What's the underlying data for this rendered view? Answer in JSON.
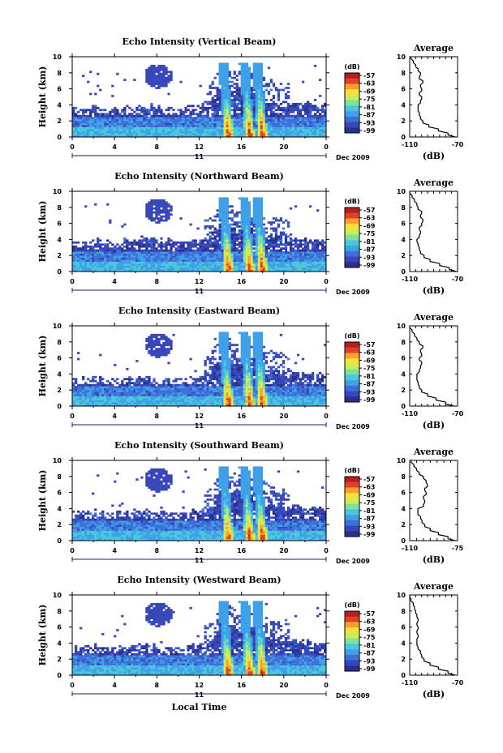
{
  "chart_data": [
    {
      "type": "heatmap",
      "title": "Echo Intensity (Vertical Beam)",
      "xlabel": "",
      "ylabel": "Height (km)",
      "xticks": [
        "0",
        "4",
        "8",
        "12",
        "16",
        "20",
        "0"
      ],
      "yticks": [
        "0",
        "2",
        "4",
        "6",
        "8",
        "10"
      ],
      "xlim": [
        0,
        24
      ],
      "ylim": [
        0,
        10
      ],
      "day_label": "11",
      "date_label": "Dec 2009",
      "colorbar": {
        "unit": "(dB)",
        "ticks": [
          "-57",
          "-63",
          "-69",
          "-75",
          "-81",
          "-87",
          "-93",
          "-99"
        ]
      },
      "layers": {
        "cloud_top_km": [
          3.5,
          3.6,
          3.8,
          3.7,
          3.6,
          3.8,
          3.9,
          4.0,
          3.8,
          3.7,
          3.6,
          3.8,
          4.0,
          4.2,
          6.5,
          6.2,
          6.0,
          6.2,
          5.2,
          4.8,
          4.5,
          4.4,
          4.3,
          4.2,
          4.0
        ]
      },
      "convection_hours": [
        14.8,
        16.8,
        18.0
      ],
      "average_profile": {
        "title": "Average",
        "xlabel": "(dB)",
        "xticks": [
          "-110",
          "-70"
        ],
        "xlim": [
          -110,
          -70
        ],
        "yticks": [
          "0",
          "2",
          "4",
          "6",
          "8",
          "10"
        ],
        "ylim": [
          0,
          10
        ],
        "height_km": [
          0,
          0.5,
          1,
          1.5,
          2,
          2.5,
          3,
          3.5,
          4,
          4.5,
          5,
          5.5,
          6,
          6.5,
          7,
          7.5,
          8,
          8.5,
          9,
          9.5,
          10
        ],
        "value_db": [
          -72,
          -78,
          -86,
          -94,
          -99,
          -101,
          -102,
          -103,
          -103,
          -101,
          -100,
          -102,
          -100,
          -101,
          -99,
          -102,
          -101,
          -103,
          -105,
          -107,
          -109
        ]
      }
    },
    {
      "type": "heatmap",
      "title": "Echo Intensity (Northward Beam)",
      "xlabel": "",
      "ylabel": "Height (km)",
      "xticks": [
        "0",
        "4",
        "8",
        "12",
        "16",
        "20",
        "0"
      ],
      "yticks": [
        "0",
        "2",
        "4",
        "6",
        "8",
        "10"
      ],
      "xlim": [
        0,
        24
      ],
      "ylim": [
        0,
        10
      ],
      "day_label": "11",
      "date_label": "Dec 2009",
      "colorbar": {
        "unit": "(dB)",
        "ticks": [
          "-57",
          "-63",
          "-69",
          "-75",
          "-81",
          "-87",
          "-93",
          "-99"
        ]
      },
      "layers": {
        "cloud_top_km": [
          3.8,
          3.7,
          3.9,
          4.0,
          3.8,
          4.0,
          4.1,
          4.2,
          4.0,
          3.9,
          3.8,
          4.0,
          4.2,
          4.5,
          6.3,
          6.0,
          5.8,
          6.0,
          5.0,
          4.6,
          4.3,
          4.2,
          4.1,
          4.0,
          3.9
        ]
      },
      "convection_hours": [
        14.8,
        16.8,
        18.0
      ],
      "average_profile": {
        "title": "Average",
        "xlabel": "(dB)",
        "xticks": [
          "-110",
          "-70"
        ],
        "xlim": [
          -110,
          -70
        ],
        "yticks": [
          "0",
          "2",
          "4",
          "6",
          "8",
          "10"
        ],
        "ylim": [
          0,
          10
        ],
        "height_km": [
          0,
          0.5,
          1,
          1.5,
          2,
          2.5,
          3,
          3.5,
          4,
          4.5,
          5,
          5.5,
          6,
          6.5,
          7,
          7.5,
          8,
          8.5,
          9,
          9.5,
          10
        ],
        "value_db": [
          -71,
          -77,
          -85,
          -93,
          -98,
          -101,
          -102,
          -103,
          -104,
          -102,
          -101,
          -102,
          -100,
          -99,
          -101,
          -100,
          -103,
          -104,
          -106,
          -108,
          -110
        ]
      }
    },
    {
      "type": "heatmap",
      "title": "Echo Intensity (Eastward Beam)",
      "xlabel": "",
      "ylabel": "Height (km)",
      "xticks": [
        "0",
        "4",
        "8",
        "12",
        "16",
        "20",
        "0"
      ],
      "yticks": [
        "0",
        "2",
        "4",
        "6",
        "8",
        "10"
      ],
      "xlim": [
        0,
        24
      ],
      "ylim": [
        0,
        10
      ],
      "day_label": "11",
      "date_label": "Dec 2009",
      "colorbar": {
        "unit": "(dB)",
        "ticks": [
          "-57",
          "-63",
          "-69",
          "-75",
          "-81",
          "-87",
          "-93",
          "-99"
        ]
      },
      "layers": {
        "cloud_top_km": [
          3.4,
          3.5,
          3.6,
          3.5,
          3.4,
          3.6,
          3.7,
          3.8,
          3.6,
          3.5,
          3.4,
          3.6,
          3.8,
          4.0,
          6.4,
          6.1,
          5.9,
          6.1,
          5.0,
          4.6,
          4.3,
          4.2,
          4.1,
          4.0,
          3.9
        ]
      },
      "convection_hours": [
        14.8,
        16.8,
        18.0
      ],
      "average_profile": {
        "title": "Average",
        "xlabel": "(dB)",
        "xticks": [
          "-110",
          "-70"
        ],
        "xlim": [
          -110,
          -70
        ],
        "yticks": [
          "0",
          "2",
          "4",
          "6",
          "8",
          "10"
        ],
        "ylim": [
          0,
          10
        ],
        "height_km": [
          0,
          0.5,
          1,
          1.5,
          2,
          2.5,
          3,
          3.5,
          4,
          4.5,
          5,
          5.5,
          6,
          6.5,
          7,
          7.5,
          8,
          8.5,
          9,
          9.5,
          10
        ],
        "value_db": [
          -73,
          -80,
          -88,
          -95,
          -100,
          -102,
          -103,
          -104,
          -104,
          -102,
          -101,
          -100,
          -102,
          -100,
          -101,
          -99,
          -102,
          -104,
          -106,
          -108,
          -110
        ]
      }
    },
    {
      "type": "heatmap",
      "title": "Echo Intensity (Southward Beam)",
      "xlabel": "",
      "ylabel": "Height (km)",
      "xticks": [
        "0",
        "4",
        "8",
        "12",
        "16",
        "20",
        "0"
      ],
      "yticks": [
        "0",
        "2",
        "4",
        "6",
        "8",
        "10"
      ],
      "xlim": [
        0,
        24
      ],
      "ylim": [
        0,
        10
      ],
      "day_label": "11",
      "date_label": "Dec 2009",
      "colorbar": {
        "unit": "(dB)",
        "ticks": [
          "-57",
          "-63",
          "-69",
          "-75",
          "-81",
          "-87",
          "-93",
          "-99"
        ]
      },
      "layers": {
        "cloud_top_km": [
          3.6,
          3.7,
          3.8,
          3.7,
          3.5,
          3.7,
          3.8,
          3.9,
          3.7,
          3.6,
          3.5,
          3.7,
          3.9,
          4.1,
          6.6,
          6.3,
          6.1,
          6.3,
          5.3,
          4.9,
          4.5,
          4.4,
          4.3,
          4.2,
          4.0
        ]
      },
      "convection_hours": [
        14.8,
        16.8,
        18.0
      ],
      "average_profile": {
        "title": "Average",
        "xlabel": "(dB)",
        "xticks": [
          "-110",
          "-75"
        ],
        "xlim": [
          -110,
          -75
        ],
        "yticks": [
          "0",
          "2",
          "4",
          "6",
          "8",
          "10"
        ],
        "ylim": [
          0,
          10
        ],
        "height_km": [
          0,
          0.5,
          1,
          1.5,
          2,
          2.5,
          3,
          3.5,
          4,
          4.5,
          5,
          5.5,
          6,
          6.5,
          7,
          7.5,
          8,
          8.5,
          9,
          9.5,
          10
        ],
        "value_db": [
          -77,
          -82,
          -89,
          -95,
          -99,
          -101,
          -102,
          -104,
          -104,
          -100,
          -99,
          -100,
          -98,
          -99,
          -97,
          -98,
          -100,
          -103,
          -105,
          -107,
          -109
        ]
      }
    },
    {
      "type": "heatmap",
      "title": "Echo Intensity (Westward Beam)",
      "xlabel": "Local Time",
      "ylabel": "Height (km)",
      "xticks": [
        "0",
        "4",
        "8",
        "12",
        "16",
        "20",
        "0"
      ],
      "yticks": [
        "0",
        "2",
        "4",
        "6",
        "8",
        "10"
      ],
      "xlim": [
        0,
        24
      ],
      "ylim": [
        0,
        10
      ],
      "day_label": "11",
      "date_label": "Dec 2009",
      "colorbar": {
        "unit": "(dB)",
        "ticks": [
          "-57",
          "-63",
          "-69",
          "-75",
          "-81",
          "-87",
          "-93",
          "-99"
        ]
      },
      "layers": {
        "cloud_top_km": [
          3.5,
          3.6,
          3.7,
          3.6,
          3.5,
          3.7,
          3.8,
          3.9,
          3.7,
          3.6,
          3.5,
          3.7,
          3.9,
          4.1,
          7.0,
          6.6,
          6.3,
          6.5,
          5.5,
          5.0,
          4.6,
          4.5,
          4.3,
          4.2,
          4.0
        ]
      },
      "convection_hours": [
        14.8,
        16.8,
        18.0
      ],
      "average_profile": {
        "title": "Average",
        "xlabel": "(dB)",
        "xticks": [
          "-110",
          "-70"
        ],
        "xlim": [
          -110,
          -70
        ],
        "yticks": [
          "0",
          "2",
          "4",
          "6",
          "8",
          "10"
        ],
        "ylim": [
          0,
          10
        ],
        "height_km": [
          0,
          0.5,
          1,
          1.5,
          2,
          2.5,
          3,
          3.5,
          4,
          4.5,
          5,
          5.5,
          6,
          6.5,
          7,
          7.5,
          8,
          8.5,
          9,
          9.5,
          10
        ],
        "value_db": [
          -72,
          -78,
          -86,
          -93,
          -98,
          -100,
          -101,
          -103,
          -104,
          -104,
          -103,
          -104,
          -103,
          -104,
          -103,
          -104,
          -105,
          -106,
          -107,
          -109,
          -110
        ]
      }
    }
  ],
  "colors": {
    "colormap": [
      "#2b2f8f",
      "#3848b8",
      "#3f6fd8",
      "#3fa0e8",
      "#49c8dc",
      "#7fe0a0",
      "#c8ec5a",
      "#f6e03c",
      "#f8a02c",
      "#e0402a",
      "#b81e1e"
    ]
  }
}
